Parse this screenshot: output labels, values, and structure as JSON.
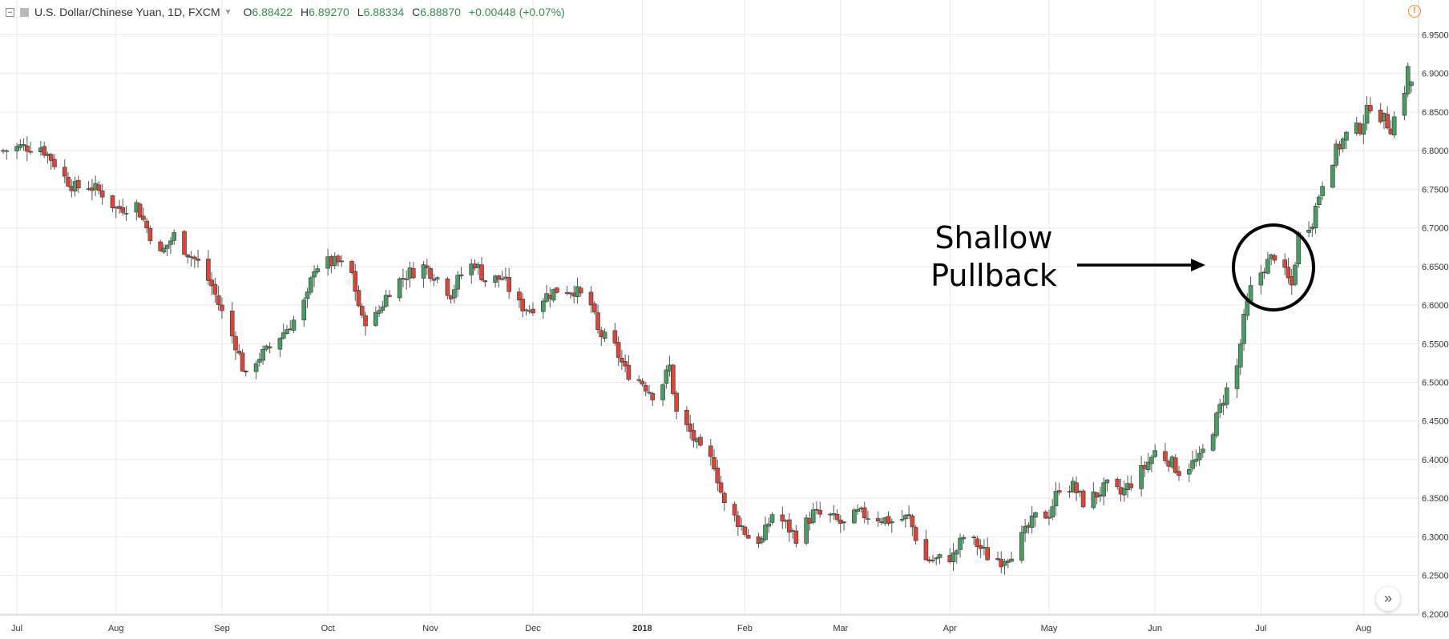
{
  "header": {
    "title": "U.S. Dollar/Chinese Yuan, 1D, FXCM",
    "open_label": "O",
    "open": "6.88422",
    "high_label": "H",
    "high": "6.89270",
    "low_label": "L",
    "low": "6.88334",
    "close_label": "C",
    "close": "6.88870",
    "change": "+0.00448 (+0.07%)"
  },
  "annotation": {
    "line1": "Shallow",
    "line2": "Pullback"
  },
  "colors": {
    "up": "#4a9c63",
    "down": "#d9463a",
    "grid": "#e8e8e8",
    "axis_text": "#333333",
    "annotation": "#000000",
    "warning": "#ef8b1d"
  },
  "icons": {
    "warning": "exclamation-circle-icon",
    "scroll": "double-chevron-right-icon"
  },
  "chart_data": {
    "type": "candlestick",
    "symbol": "USDCNH",
    "interval": "1D",
    "y_ticks": [
      "6.95000",
      "6.90000",
      "6.85000",
      "6.80000",
      "6.75000",
      "6.70000",
      "6.65000",
      "6.60000",
      "6.55000",
      "6.50000",
      "6.45000",
      "6.40000",
      "6.35000",
      "6.30000",
      "6.25000",
      "6.20000"
    ],
    "ylim": [
      6.2,
      6.955
    ],
    "x_ticks": [
      "Jul",
      "Aug",
      "Sep",
      "Oct",
      "Nov",
      "Dec",
      "2018",
      "Feb",
      "Mar",
      "Apr",
      "May",
      "Jun",
      "Jul",
      "Aug"
    ],
    "x_range": [
      "2017-06-29",
      "2018-08-15"
    ],
    "series_path": [
      [
        "2017-06-29",
        6.8
      ],
      [
        "2017-07-04",
        6.805
      ],
      [
        "2017-07-10",
        6.805
      ],
      [
        "2017-07-13",
        6.79
      ],
      [
        "2017-07-17",
        6.765
      ],
      [
        "2017-07-20",
        6.752
      ],
      [
        "2017-07-24",
        6.755
      ],
      [
        "2017-07-28",
        6.745
      ],
      [
        "2017-08-01",
        6.725
      ],
      [
        "2017-08-07",
        6.73
      ],
      [
        "2017-08-10",
        6.7
      ],
      [
        "2017-08-14",
        6.665
      ],
      [
        "2017-08-16",
        6.678
      ],
      [
        "2017-08-18",
        6.69
      ],
      [
        "2017-08-22",
        6.668
      ],
      [
        "2017-08-25",
        6.655
      ],
      [
        "2017-08-29",
        6.625
      ],
      [
        "2017-09-01",
        6.59
      ],
      [
        "2017-09-05",
        6.55
      ],
      [
        "2017-09-08",
        6.505
      ],
      [
        "2017-09-11",
        6.53
      ],
      [
        "2017-09-14",
        6.54
      ],
      [
        "2017-09-18",
        6.56
      ],
      [
        "2017-09-22",
        6.58
      ],
      [
        "2017-09-26",
        6.61
      ],
      [
        "2017-09-28",
        6.65
      ],
      [
        "2017-10-02",
        6.655
      ],
      [
        "2017-10-05",
        6.655
      ],
      [
        "2017-10-09",
        6.64
      ],
      [
        "2017-10-12",
        6.58
      ],
      [
        "2017-10-16",
        6.585
      ],
      [
        "2017-10-20",
        6.62
      ],
      [
        "2017-10-25",
        6.64
      ],
      [
        "2017-10-30",
        6.65
      ],
      [
        "2017-11-02",
        6.64
      ],
      [
        "2017-11-07",
        6.615
      ],
      [
        "2017-11-10",
        6.64
      ],
      [
        "2017-11-14",
        6.655
      ],
      [
        "2017-11-17",
        6.632
      ],
      [
        "2017-11-22",
        6.635
      ],
      [
        "2017-11-27",
        6.6
      ],
      [
        "2017-11-30",
        6.595
      ],
      [
        "2017-12-04",
        6.61
      ],
      [
        "2017-12-08",
        6.62
      ],
      [
        "2017-12-13",
        6.62
      ],
      [
        "2017-12-18",
        6.6
      ],
      [
        "2017-12-20",
        6.565
      ],
      [
        "2017-12-25",
        6.545
      ],
      [
        "2017-12-28",
        6.515
      ],
      [
        "2018-01-02",
        6.5
      ],
      [
        "2018-01-05",
        6.485
      ],
      [
        "2018-01-08",
        6.5
      ],
      [
        "2018-01-10",
        6.52
      ],
      [
        "2018-01-12",
        6.46
      ],
      [
        "2018-01-16",
        6.435
      ],
      [
        "2018-01-19",
        6.41
      ],
      [
        "2018-01-23",
        6.395
      ],
      [
        "2018-01-26",
        6.34
      ],
      [
        "2018-01-30",
        6.32
      ],
      [
        "2018-02-02",
        6.3
      ],
      [
        "2018-02-06",
        6.295
      ],
      [
        "2018-02-09",
        6.33
      ],
      [
        "2018-02-12",
        6.32
      ],
      [
        "2018-02-16",
        6.3
      ],
      [
        "2018-02-21",
        6.33
      ],
      [
        "2018-02-26",
        6.325
      ],
      [
        "2018-03-02",
        6.315
      ],
      [
        "2018-03-06",
        6.33
      ],
      [
        "2018-03-12",
        6.325
      ],
      [
        "2018-03-16",
        6.32
      ],
      [
        "2018-03-21",
        6.325
      ],
      [
        "2018-03-23",
        6.3
      ],
      [
        "2018-03-26",
        6.27
      ],
      [
        "2018-03-29",
        6.27
      ],
      [
        "2018-04-03",
        6.275
      ],
      [
        "2018-04-06",
        6.3
      ],
      [
        "2018-04-10",
        6.29
      ],
      [
        "2018-04-13",
        6.275
      ],
      [
        "2018-04-17",
        6.27
      ],
      [
        "2018-04-20",
        6.28
      ],
      [
        "2018-04-24",
        6.305
      ],
      [
        "2018-04-27",
        6.325
      ],
      [
        "2018-05-01",
        6.33
      ],
      [
        "2018-05-04",
        6.365
      ],
      [
        "2018-05-08",
        6.365
      ],
      [
        "2018-05-11",
        6.345
      ],
      [
        "2018-05-15",
        6.355
      ],
      [
        "2018-05-18",
        6.365
      ],
      [
        "2018-05-22",
        6.355
      ],
      [
        "2018-05-25",
        6.37
      ],
      [
        "2018-05-29",
        6.39
      ],
      [
        "2018-06-01",
        6.41
      ],
      [
        "2018-06-05",
        6.4
      ],
      [
        "2018-06-08",
        6.385
      ],
      [
        "2018-06-12",
        6.395
      ],
      [
        "2018-06-14",
        6.4
      ],
      [
        "2018-06-18",
        6.44
      ],
      [
        "2018-06-21",
        6.48
      ],
      [
        "2018-06-25",
        6.52
      ],
      [
        "2018-06-27",
        6.58
      ],
      [
        "2018-06-29",
        6.62
      ],
      [
        "2018-07-03",
        6.65
      ],
      [
        "2018-07-06",
        6.665
      ],
      [
        "2018-07-09",
        6.64
      ],
      [
        "2018-07-11",
        6.625
      ],
      [
        "2018-07-13",
        6.69
      ],
      [
        "2018-07-17",
        6.71
      ],
      [
        "2018-07-20",
        6.76
      ],
      [
        "2018-07-24",
        6.8
      ],
      [
        "2018-07-27",
        6.82
      ],
      [
        "2018-07-31",
        6.83
      ],
      [
        "2018-08-03",
        6.86
      ],
      [
        "2018-08-07",
        6.84
      ],
      [
        "2018-08-09",
        6.83
      ],
      [
        "2018-08-13",
        6.88
      ],
      [
        "2018-08-15",
        6.93
      ]
    ],
    "last": {
      "open": 6.88422,
      "high": 6.8927,
      "low": 6.88334,
      "close": 6.8887
    }
  }
}
